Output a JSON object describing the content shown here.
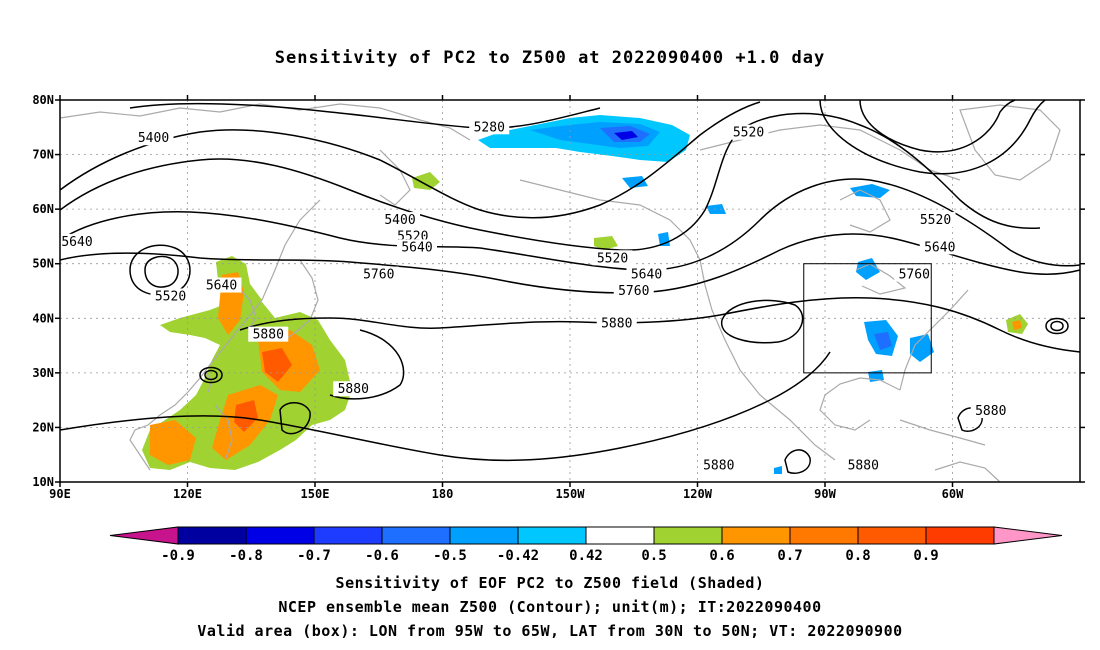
{
  "title": "Sensitivity of PC2 to Z500 at 2022090400 +1.0 day",
  "map": {
    "lon_ticks": [
      "90E",
      "120E",
      "150E",
      "180",
      "150W",
      "120W",
      "90W",
      "60W"
    ],
    "lat_ticks": [
      "80N",
      "70N",
      "60N",
      "50N",
      "40N",
      "30N",
      "20N",
      "10N"
    ],
    "contour_levels": [
      "5280",
      "5400",
      "5520",
      "5640",
      "5760",
      "5880"
    ],
    "contour_labels": [
      {
        "text": "5400",
        "lon": 112,
        "lat": 73
      },
      {
        "text": "5280",
        "lon": 191,
        "lat": 75
      },
      {
        "text": "5520",
        "lon": 252,
        "lat": 74
      },
      {
        "text": "5640",
        "lon": 94,
        "lat": 54
      },
      {
        "text": "5520",
        "lon": 116,
        "lat": 44
      },
      {
        "text": "5640",
        "lon": 128,
        "lat": 46
      },
      {
        "text": "5880",
        "lon": 139,
        "lat": 37
      },
      {
        "text": "5880",
        "lon": 159,
        "lat": 27
      },
      {
        "text": "5760",
        "lon": 165,
        "lat": 48
      },
      {
        "text": "5400",
        "lon": 170,
        "lat": 58
      },
      {
        "text": "5520",
        "lon": 173,
        "lat": 55
      },
      {
        "text": "5640",
        "lon": 174,
        "lat": 53
      },
      {
        "text": "5520",
        "lon": 220,
        "lat": 51
      },
      {
        "text": "5640",
        "lon": 228,
        "lat": 48
      },
      {
        "text": "5760",
        "lon": 225,
        "lat": 45
      },
      {
        "text": "5880",
        "lon": 221,
        "lat": 39
      },
      {
        "text": "5880",
        "lon": 245,
        "lat": 13
      },
      {
        "text": "5880",
        "lon": 279,
        "lat": 13
      },
      {
        "text": "5520",
        "lon": 296,
        "lat": 58
      },
      {
        "text": "5640",
        "lon": 297,
        "lat": 53
      },
      {
        "text": "5760",
        "lon": 291,
        "lat": 48
      },
      {
        "text": "5880",
        "lon": 309,
        "lat": 23
      }
    ],
    "box": {
      "lon_min": 265,
      "lon_max": 295,
      "lat_min": 30,
      "lat_max": 50
    },
    "colors": {
      "neg_extreme": "#c8148c",
      "neg_09": "#0000a0",
      "neg_08": "#0000e6",
      "neg_07": "#1e3cff",
      "neg_06": "#1e6eff",
      "neg_05": "#00a0ff",
      "neg_042": "#00c8ff",
      "neutral": "#ffffff",
      "pos_042": "#a0d232",
      "pos_05": "#ff9600",
      "pos_06": "#ff7800",
      "pos_07": "#ff5a00",
      "pos_08": "#ff3c00",
      "pos_09": "#ff0000",
      "pos_extreme": "#ff96c8",
      "coastline": "#aaaaaa",
      "contour": "#000000"
    }
  },
  "colorbar": {
    "labels": [
      "-0.9",
      "-0.8",
      "-0.7",
      "-0.6",
      "-0.5",
      "-0.42",
      "0.42",
      "0.5",
      "0.6",
      "0.7",
      "0.8",
      "0.9"
    ]
  },
  "captions": [
    "Sensitivity of EOF PC2 to Z500 field (Shaded)",
    "NCEP ensemble mean Z500 (Contour); unit(m); IT:2022090400",
    "Valid area (box): LON from 95W to 65W, LAT from 30N to 50N; VT: 2022090900"
  ]
}
